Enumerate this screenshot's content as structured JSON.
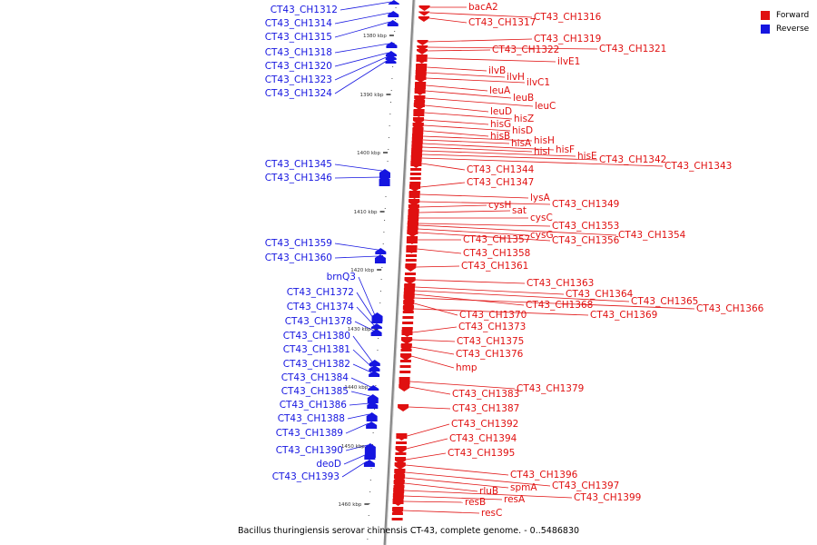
{
  "colors": {
    "forward": "#e01010",
    "reverse": "#1515e0",
    "backbone": "#888888"
  },
  "legend": [
    {
      "label": "Forward",
      "color": "#e01010"
    },
    {
      "label": "Reverse",
      "color": "#1515e0"
    }
  ],
  "caption": "Bacillus thuringiensis serovar chinensis CT-43, complete genome. - 0..5486830",
  "ticks": [
    "1380 kbp",
    "1390 kbp",
    "1400 kbp",
    "1410 kbp",
    "1420 kbp",
    "1430 kbp",
    "1440 kbp",
    "1450 kbp",
    "1460 kbp"
  ],
  "reverse_genes": [
    "CT43_CH1312",
    "CT43_CH1314",
    "CT43_CH1315",
    "CT43_CH1318",
    "CT43_CH1320",
    "CT43_CH1323",
    "CT43_CH1324",
    "CT43_CH1345",
    "CT43_CH1346",
    "CT43_CH1359",
    "CT43_CH1360",
    "brnQ3",
    "CT43_CH1372",
    "CT43_CH1374",
    "CT43_CH1378",
    "CT43_CH1380",
    "CT43_CH1381",
    "CT43_CH1382",
    "CT43_CH1384",
    "CT43_CH1385",
    "CT43_CH1386",
    "CT43_CH1388",
    "CT43_CH1389",
    "CT43_CH1390",
    "deoD",
    "CT43_CH1393"
  ],
  "forward_genes": [
    "bacA2",
    "CT43_CH1316",
    "CT43_CH1317",
    "CT43_CH1319",
    "CT43_CH1321",
    "CT43_CH1322",
    "ilvE1",
    "ilvB",
    "ilvH",
    "ilvC1",
    "leuA",
    "leuB",
    "leuC",
    "leuD",
    "hisZ",
    "hisG",
    "hisD",
    "hisB",
    "hisH",
    "hisA",
    "hisF",
    "hisI",
    "hisE",
    "CT43_CH1342",
    "CT43_CH1343",
    "CT43_CH1344",
    "CT43_CH1347",
    "lysA",
    "CT43_CH1349",
    "cysH",
    "sat",
    "cysC",
    "CT43_CH1353",
    "CT43_CH1354",
    "cysG",
    "CT43_CH1356",
    "CT43_CH1357",
    "CT43_CH1358",
    "CT43_CH1361",
    "CT43_CH1363",
    "CT43_CH1364",
    "CT43_CH1365",
    "CT43_CH1368",
    "CT43_CH1366",
    "CT43_CH1370",
    "CT43_CH1369",
    "CT43_CH1373",
    "CT43_CH1375",
    "CT43_CH1376",
    "hmp",
    "CT43_CH1379",
    "CT43_CH1383",
    "CT43_CH1387",
    "CT43_CH1392",
    "CT43_CH1394",
    "CT43_CH1395",
    "CT43_CH1396",
    "CT43_CH1397",
    "spmA",
    "rluB",
    "CT43_CH1399",
    "resA",
    "resB",
    "resC"
  ]
}
